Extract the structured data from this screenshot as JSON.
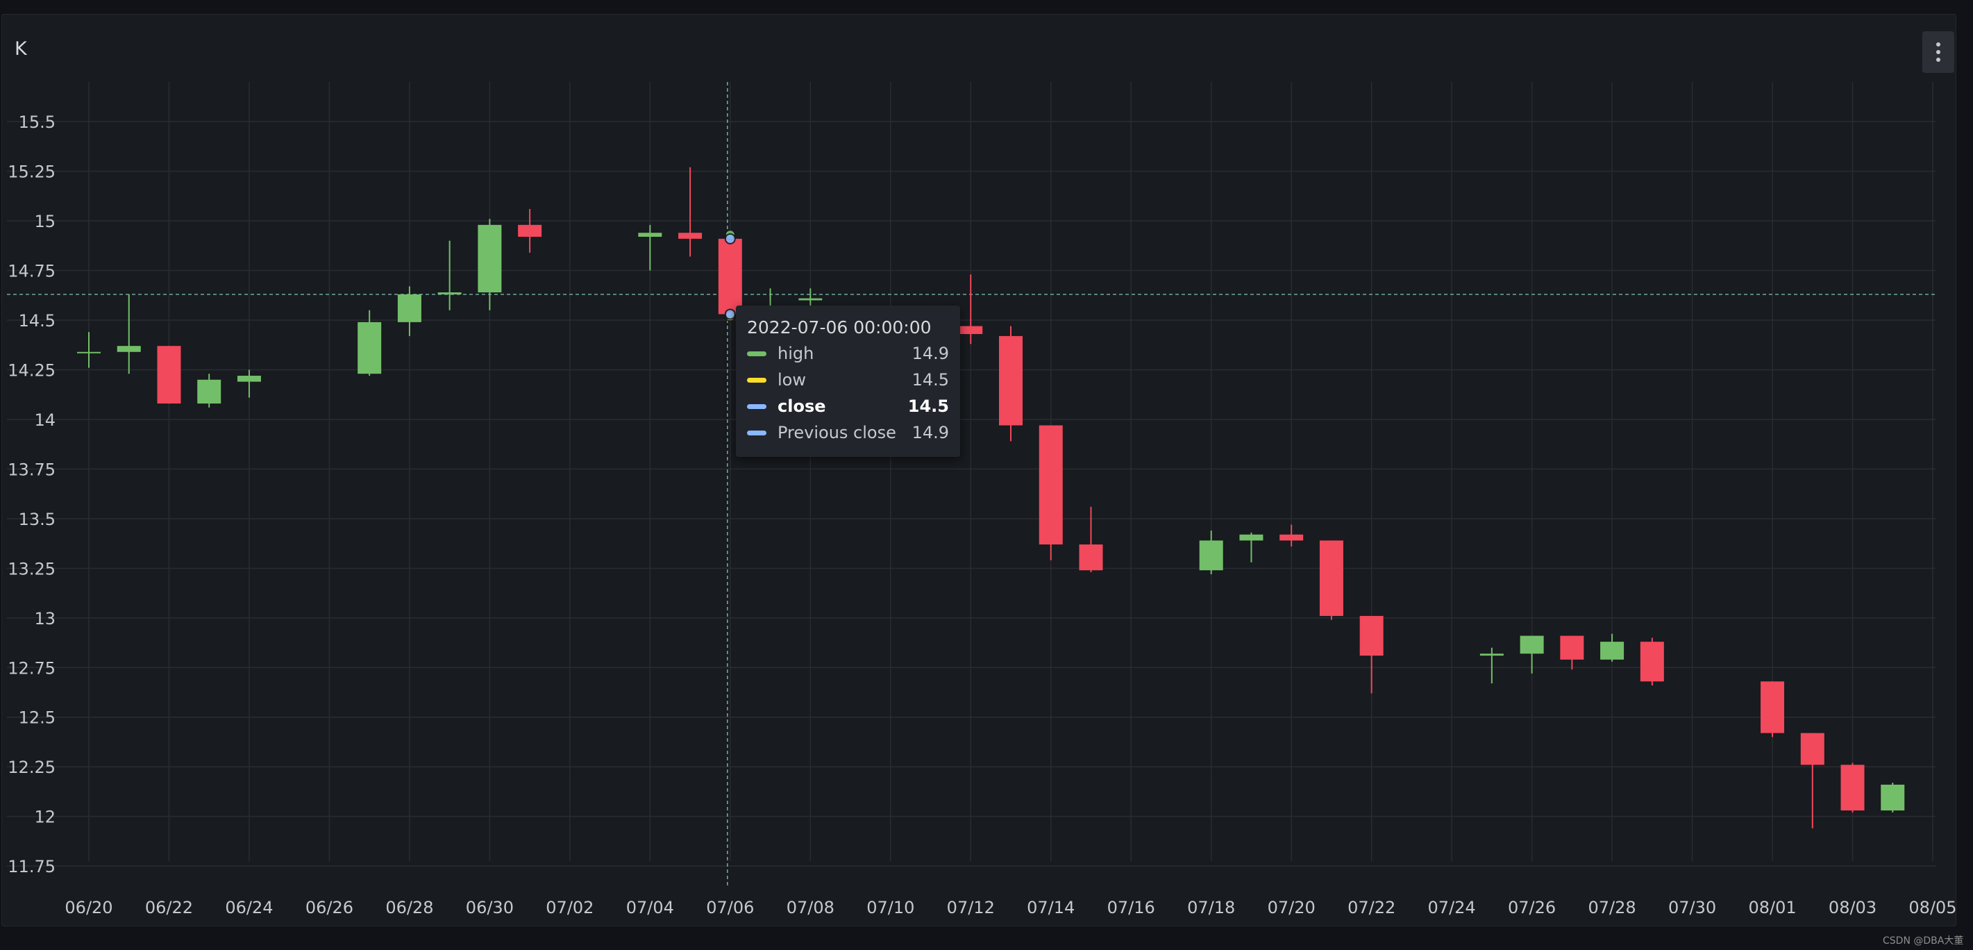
{
  "panel": {
    "title": "K"
  },
  "watermark": "CSDN @DBA大董",
  "tooltip": {
    "time": "2022-07-06 00:00:00",
    "rows": [
      {
        "label": "high",
        "value": "14.9",
        "color": "#73bf69",
        "bold": false
      },
      {
        "label": "low",
        "value": "14.5",
        "color": "#fade2a",
        "bold": false
      },
      {
        "label": "close",
        "value": "14.5",
        "color": "#8ab8ff",
        "bold": true
      },
      {
        "label": "Previous close",
        "value": "14.9",
        "color": "#8ab8ff",
        "bold": false
      }
    ]
  },
  "colors": {
    "up": "#73bf69",
    "down": "#f2495c",
    "grid": "#2a2c32",
    "axis_text": "#c8c9ce",
    "crosshair": "#6fa8a4"
  },
  "chart_data": {
    "type": "candlestick",
    "ylim": [
      11.6,
      15.7
    ],
    "yticks": [
      "15.5",
      "15.25",
      "15",
      "14.75",
      "14.5",
      "14.25",
      "14",
      "13.75",
      "13.5",
      "13.25",
      "13",
      "12.75",
      "12.5",
      "12.25",
      "12",
      "11.75"
    ],
    "xticks": [
      "06/20",
      "06/22",
      "06/24",
      "06/26",
      "06/28",
      "06/30",
      "07/02",
      "07/04",
      "07/06",
      "07/08",
      "07/10",
      "07/12",
      "07/14",
      "07/16",
      "07/18",
      "07/20",
      "07/22",
      "07/24",
      "07/26",
      "07/28",
      "07/30",
      "08/01",
      "08/03",
      "08/05"
    ],
    "x_start": "2022-06-20",
    "x_end": "2022-08-05",
    "grid": true,
    "crosshair": {
      "date": "2022-07-06",
      "value": 14.63
    },
    "candles": [
      {
        "date": "2022-06-20",
        "open": 14.34,
        "high": 14.44,
        "low": 14.26,
        "close": 14.34
      },
      {
        "date": "2022-06-21",
        "open": 14.34,
        "high": 14.63,
        "low": 14.23,
        "close": 14.37
      },
      {
        "date": "2022-06-22",
        "open": 14.37,
        "high": 14.37,
        "low": 14.08,
        "close": 14.08
      },
      {
        "date": "2022-06-23",
        "open": 14.08,
        "high": 14.23,
        "low": 14.06,
        "close": 14.2
      },
      {
        "date": "2022-06-24",
        "open": 14.19,
        "high": 14.25,
        "low": 14.11,
        "close": 14.22
      },
      {
        "date": "2022-06-27",
        "open": 14.23,
        "high": 14.55,
        "low": 14.22,
        "close": 14.49
      },
      {
        "date": "2022-06-28",
        "open": 14.49,
        "high": 14.67,
        "low": 14.42,
        "close": 14.63
      },
      {
        "date": "2022-06-29",
        "open": 14.63,
        "high": 14.9,
        "low": 14.55,
        "close": 14.64
      },
      {
        "date": "2022-06-30",
        "open": 14.64,
        "high": 15.01,
        "low": 14.55,
        "close": 14.98
      },
      {
        "date": "2022-07-01",
        "open": 14.98,
        "high": 15.06,
        "low": 14.84,
        "close": 14.92
      },
      {
        "date": "2022-07-04",
        "open": 14.92,
        "high": 14.98,
        "low": 14.75,
        "close": 14.94
      },
      {
        "date": "2022-07-05",
        "open": 14.94,
        "high": 15.27,
        "low": 14.82,
        "close": 14.91
      },
      {
        "date": "2022-07-06",
        "open": 14.91,
        "high": 14.93,
        "low": 14.52,
        "close": 14.53
      },
      {
        "date": "2022-07-07",
        "open": 14.53,
        "high": 14.66,
        "low": 14.53,
        "close": 14.53
      },
      {
        "date": "2022-07-08",
        "open": 14.6,
        "high": 14.66,
        "low": 14.55,
        "close": 14.61
      },
      {
        "date": "2022-07-12",
        "open": 14.47,
        "high": 14.73,
        "low": 14.38,
        "close": 14.43
      },
      {
        "date": "2022-07-13",
        "open": 14.42,
        "high": 14.47,
        "low": 13.89,
        "close": 13.97
      },
      {
        "date": "2022-07-14",
        "open": 13.97,
        "high": 13.97,
        "low": 13.29,
        "close": 13.37
      },
      {
        "date": "2022-07-15",
        "open": 13.37,
        "high": 13.56,
        "low": 13.23,
        "close": 13.24
      },
      {
        "date": "2022-07-18",
        "open": 13.24,
        "high": 13.44,
        "low": 13.22,
        "close": 13.39
      },
      {
        "date": "2022-07-19",
        "open": 13.39,
        "high": 13.43,
        "low": 13.28,
        "close": 13.42
      },
      {
        "date": "2022-07-20",
        "open": 13.42,
        "high": 13.47,
        "low": 13.36,
        "close": 13.39
      },
      {
        "date": "2022-07-21",
        "open": 13.39,
        "high": 13.39,
        "low": 12.99,
        "close": 13.01
      },
      {
        "date": "2022-07-22",
        "open": 13.01,
        "high": 13.01,
        "low": 12.62,
        "close": 12.81
      },
      {
        "date": "2022-07-25",
        "open": 12.81,
        "high": 12.85,
        "low": 12.67,
        "close": 12.82
      },
      {
        "date": "2022-07-26",
        "open": 12.82,
        "high": 12.91,
        "low": 12.72,
        "close": 12.91
      },
      {
        "date": "2022-07-27",
        "open": 12.91,
        "high": 12.91,
        "low": 12.74,
        "close": 12.79
      },
      {
        "date": "2022-07-28",
        "open": 12.79,
        "high": 12.92,
        "low": 12.78,
        "close": 12.88
      },
      {
        "date": "2022-07-29",
        "open": 12.88,
        "high": 12.9,
        "low": 12.66,
        "close": 12.68
      },
      {
        "date": "2022-08-01",
        "open": 12.68,
        "high": 12.68,
        "low": 12.4,
        "close": 12.42
      },
      {
        "date": "2022-08-02",
        "open": 12.42,
        "high": 12.42,
        "low": 11.94,
        "close": 12.26
      },
      {
        "date": "2022-08-03",
        "open": 12.26,
        "high": 12.27,
        "low": 12.02,
        "close": 12.03
      },
      {
        "date": "2022-08-04",
        "open": 12.03,
        "high": 12.17,
        "low": 12.02,
        "close": 12.16
      }
    ]
  }
}
